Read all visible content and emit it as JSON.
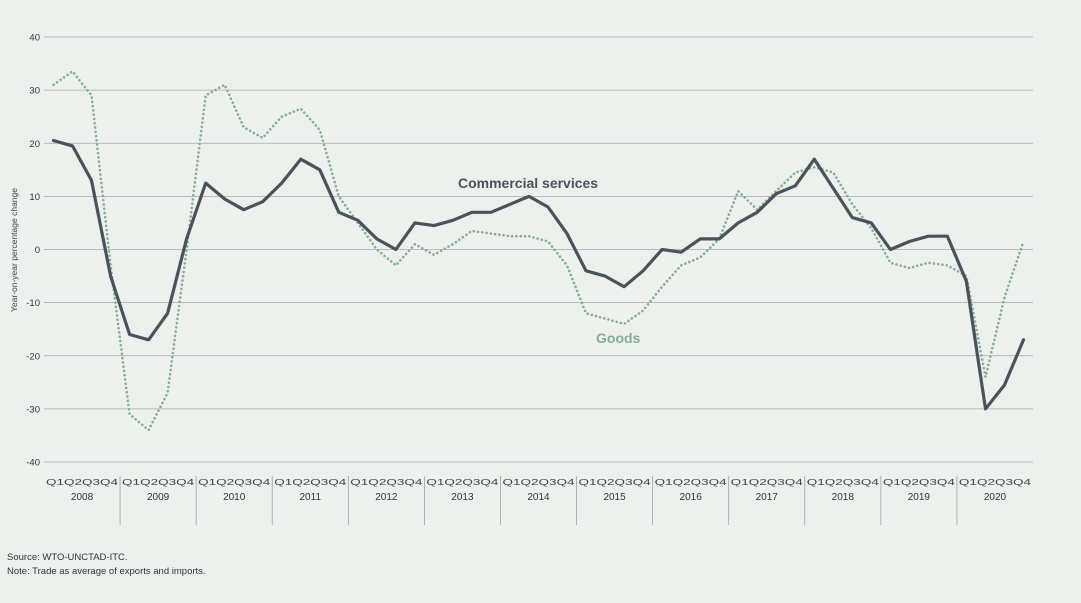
{
  "chart_data": {
    "type": "line",
    "title": "",
    "xlabel": "",
    "ylabel": "Year-on-year percentage change",
    "ylim": [
      -40,
      40
    ],
    "yticks": [
      40,
      30,
      20,
      10,
      0,
      -10,
      -20,
      -30,
      -40
    ],
    "years": [
      "2008",
      "2009",
      "2010",
      "2011",
      "2012",
      "2013",
      "2014",
      "2015",
      "2016",
      "2017",
      "2018",
      "2019",
      "2020"
    ],
    "quarter_label": "Q1Q2Q3Q4",
    "grid": true,
    "series": [
      {
        "name": "Commercial services",
        "color": "#4a525c",
        "style": "solid",
        "values": [
          20.5,
          19.5,
          13,
          -5,
          -16,
          -17,
          -12,
          2,
          12.5,
          9.5,
          7.5,
          9,
          12.5,
          17,
          15,
          7,
          5.5,
          2,
          0,
          5,
          4.5,
          5.5,
          7,
          7,
          8.5,
          10,
          8,
          3,
          -4,
          -5,
          -7,
          -4,
          0,
          -0.5,
          2,
          2,
          5,
          7,
          10.5,
          12,
          17,
          11.5,
          6,
          5,
          0,
          1.5,
          2.5,
          2.5,
          -6,
          -30,
          -25.5,
          -17
        ]
      },
      {
        "name": "Goods",
        "color": "#84ad9c",
        "style": "dotted",
        "values": [
          31,
          33.5,
          29,
          -3,
          -31,
          -34,
          -27,
          0,
          29,
          31,
          23,
          21,
          25,
          26.5,
          22.5,
          10,
          5,
          0,
          -3,
          1,
          -1,
          1,
          3.5,
          3,
          2.5,
          2.5,
          1.5,
          -3,
          -12,
          -13,
          -14,
          -11.5,
          -7,
          -3,
          -1.5,
          2,
          11,
          7.5,
          11,
          14.5,
          15.5,
          14.5,
          8.5,
          4,
          -2.5,
          -3.5,
          -2.5,
          -3,
          -5,
          -24,
          -9,
          1.5
        ]
      }
    ]
  },
  "footer": {
    "source": "Source: WTO-UNCTAD-ITC.",
    "note": "Note: Trade as average of exports and imports."
  }
}
